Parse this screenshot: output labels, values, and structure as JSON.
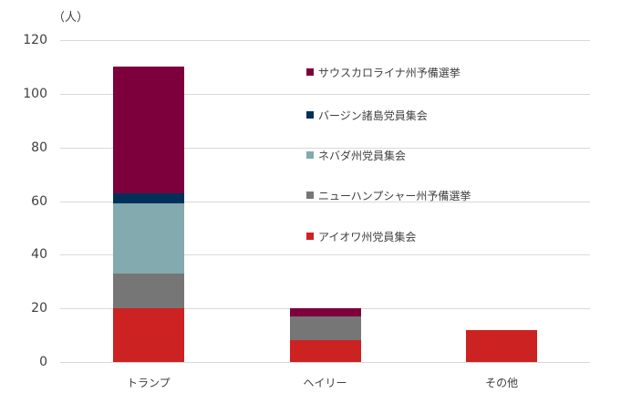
{
  "chart_data": {
    "type": "bar",
    "stacked": true,
    "title": "",
    "unit_label": "（人）",
    "xlabel": "",
    "ylabel": "（人）",
    "ylim": [
      0,
      120
    ],
    "yticks": [
      0,
      20,
      40,
      60,
      80,
      100,
      120
    ],
    "grid": true,
    "legend_position": "right-inside",
    "categories": [
      "トランプ",
      "ヘイリー",
      "その他"
    ],
    "series": [
      {
        "name": "アイオワ州党員集会",
        "color": "#cc2222",
        "values": [
          20,
          8,
          12
        ]
      },
      {
        "name": "ニューハンプシャー州予備選挙",
        "color": "#767676",
        "values": [
          13,
          9,
          0
        ]
      },
      {
        "name": "ネバダ州党員集会",
        "color": "#83aaae",
        "values": [
          26,
          0,
          0
        ]
      },
      {
        "name": "バージン諸島党員集会",
        "color": "#00305a",
        "values": [
          4,
          0,
          0
        ]
      },
      {
        "name": "サウスカロライナ州予備選挙",
        "color": "#7d003c",
        "values": [
          47,
          3,
          0
        ]
      }
    ],
    "totals": [
      110,
      20,
      12
    ]
  },
  "axis": {
    "unit": "（人）",
    "ticks": [
      "0",
      "20",
      "40",
      "60",
      "80",
      "100",
      "120"
    ]
  },
  "legend": [
    {
      "label": "サウスカロライナ州予備選挙",
      "color": "#7d003c"
    },
    {
      "label": "バージン諸島党員集会",
      "color": "#00305a"
    },
    {
      "label": "ネバダ州党員集会",
      "color": "#83aaae"
    },
    {
      "label": "ニューハンプシャー州予備選挙",
      "color": "#767676"
    },
    {
      "label": "アイオワ州党員集会",
      "color": "#cc2222"
    }
  ]
}
